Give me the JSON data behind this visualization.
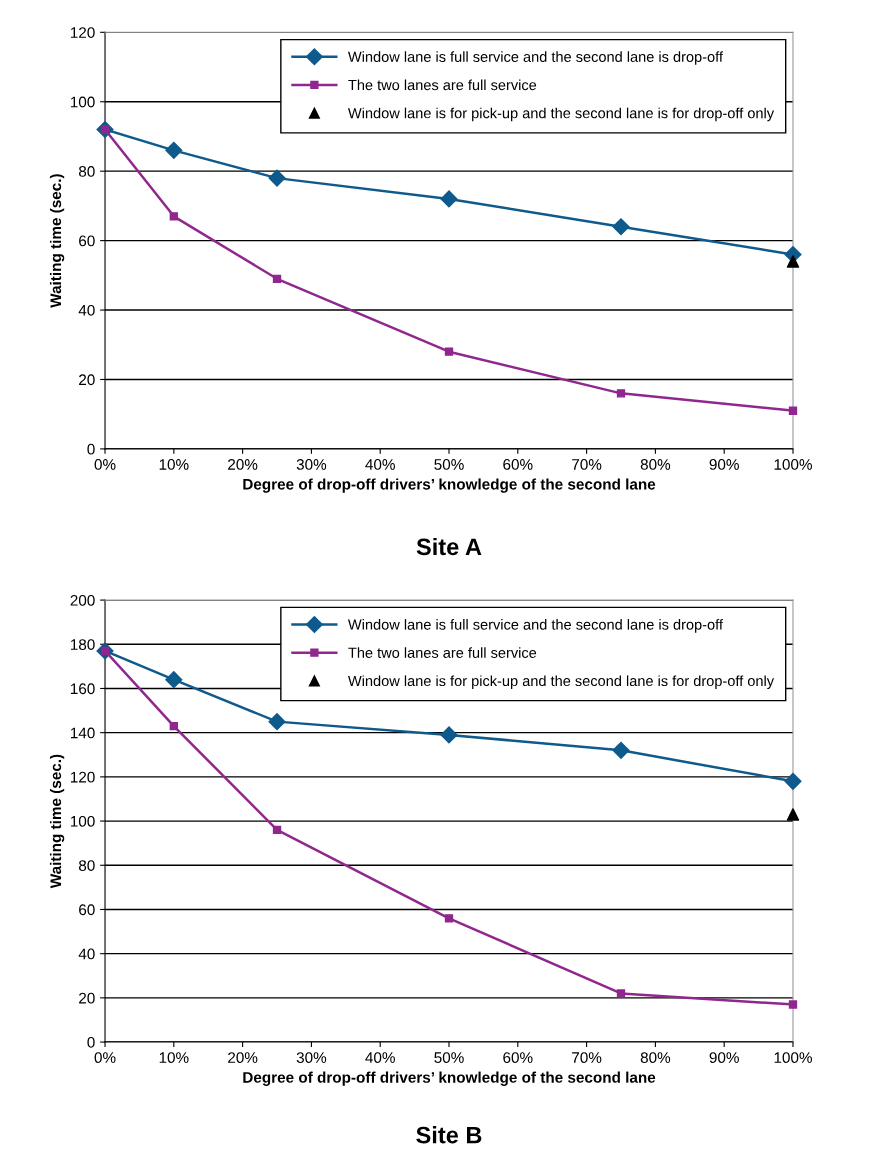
{
  "chart_data": [
    {
      "type": "line",
      "title": "Site A",
      "xlabel": "Degree of drop-off drivers’ knowledge of the second lane",
      "ylabel": "Waiting time (sec.)",
      "x": [
        0,
        10,
        25,
        50,
        75,
        100
      ],
      "series": [
        {
          "name": "Window lane is full service and the second lane is drop-off",
          "color": "#0f5a8c",
          "marker": "diamond",
          "values": [
            92,
            86,
            78,
            72,
            64,
            56
          ]
        },
        {
          "name": "The two lanes are full service",
          "color": "#90278e",
          "marker": "square",
          "values": [
            92,
            67,
            49,
            28,
            16,
            11
          ]
        },
        {
          "name": "Window lane is for pick-up and the second lane is for drop-off only",
          "type": "scatter",
          "color": "#000000",
          "marker": "triangle",
          "x": [
            100
          ],
          "values": [
            54
          ]
        }
      ],
      "xlim": [
        0,
        100
      ],
      "xticks": [
        {
          "value": 0,
          "label": "0%"
        },
        {
          "value": 10,
          "label": "10%"
        },
        {
          "value": 20,
          "label": "20%"
        },
        {
          "value": 30,
          "label": "30%"
        },
        {
          "value": 40,
          "label": "40%"
        },
        {
          "value": 50,
          "label": "50%"
        },
        {
          "value": 60,
          "label": "60%"
        },
        {
          "value": 70,
          "label": "70%"
        },
        {
          "value": 80,
          "label": "80%"
        },
        {
          "value": 90,
          "label": "90%"
        },
        {
          "value": 100,
          "label": "100%"
        }
      ],
      "ylim": [
        0,
        120
      ],
      "yticks": [
        0,
        20,
        40,
        60,
        80,
        100,
        120
      ],
      "grid": "y",
      "legend": "top right"
    },
    {
      "type": "line",
      "title": "Site B",
      "xlabel": "Degree of drop-off drivers’ knowledge of the second lane",
      "ylabel": "Waiting time (sec.)",
      "x": [
        0,
        10,
        25,
        50,
        75,
        100
      ],
      "series": [
        {
          "name": "Window lane is full service and the second lane is drop-off",
          "color": "#0f5a8c",
          "marker": "diamond",
          "values": [
            177,
            164,
            145,
            139,
            132,
            118
          ]
        },
        {
          "name": "The two lanes are full service",
          "color": "#90278e",
          "marker": "square",
          "values": [
            177,
            143,
            96,
            56,
            22,
            17
          ]
        },
        {
          "name": "Window lane is for pick-up and the second lane is for drop-off only",
          "type": "scatter",
          "color": "#000000",
          "marker": "triangle",
          "x": [
            100
          ],
          "values": [
            103
          ]
        }
      ],
      "xlim": [
        0,
        100
      ],
      "xticks": [
        {
          "value": 0,
          "label": "0%"
        },
        {
          "value": 10,
          "label": "10%"
        },
        {
          "value": 20,
          "label": "20%"
        },
        {
          "value": 30,
          "label": "30%"
        },
        {
          "value": 40,
          "label": "40%"
        },
        {
          "value": 50,
          "label": "50%"
        },
        {
          "value": 60,
          "label": "60%"
        },
        {
          "value": 70,
          "label": "70%"
        },
        {
          "value": 80,
          "label": "80%"
        },
        {
          "value": 90,
          "label": "90%"
        },
        {
          "value": 100,
          "label": "100%"
        }
      ],
      "ylim": [
        0,
        200
      ],
      "yticks": [
        0,
        20,
        40,
        60,
        80,
        100,
        120,
        140,
        160,
        180,
        200
      ],
      "grid": "y",
      "legend": "top right"
    }
  ]
}
